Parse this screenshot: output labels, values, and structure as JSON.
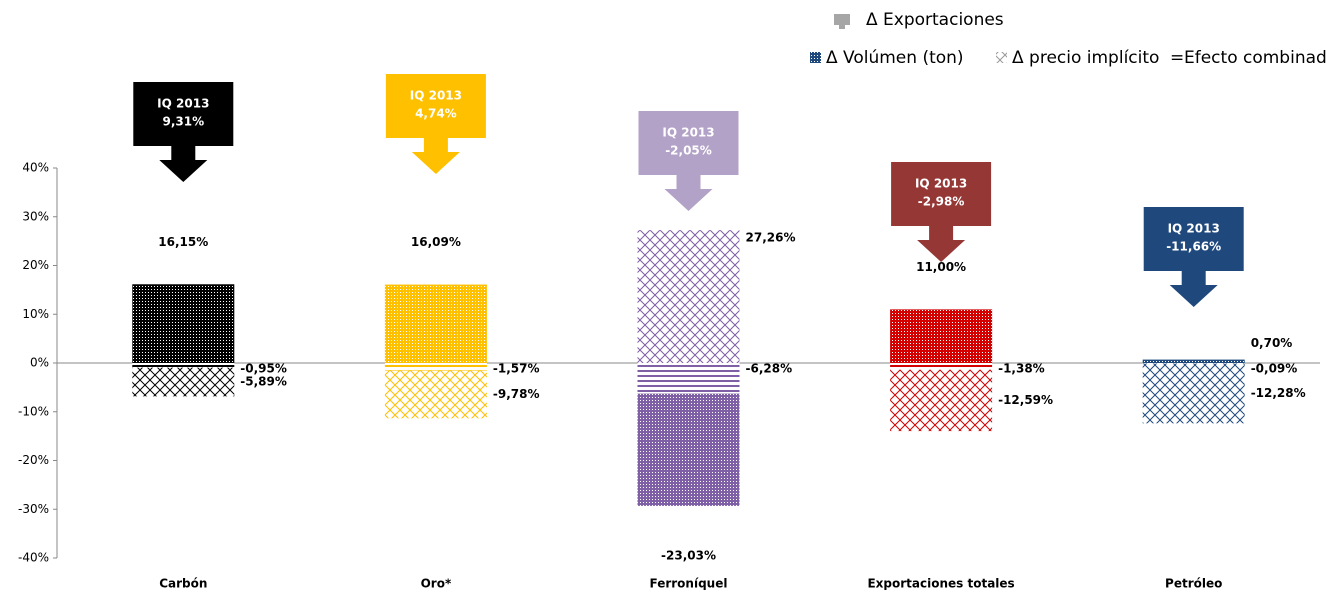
{
  "chart_data": {
    "type": "bar",
    "categories": [
      "Carbón",
      "Oro*",
      "Ferroníquel",
      "Exportaciones totales",
      "Petróleo"
    ],
    "colors": [
      "#000000",
      "#ffc000",
      "#7f5fa6",
      "#d40000",
      "#1f497d"
    ],
    "callout_colors": [
      "#000000",
      "#ffc000",
      "#b3a2c7",
      "#953735",
      "#1f497d"
    ],
    "exports": {
      "name": "Δ Exportaciones",
      "period": "IQ 2013",
      "values": [
        9.31,
        4.74,
        -2.05,
        -2.98,
        -11.66
      ],
      "value_labels": [
        "9,31%",
        "4,74%",
        "-2,05%",
        "-2,98%",
        "-11,66%"
      ]
    },
    "series": [
      {
        "name": "Δ Volúmen (ton)",
        "values": [
          16.15,
          16.09,
          -23.03,
          11.0,
          0.7
        ],
        "value_labels": [
          "16,15%",
          "16,09%",
          "-23,03%",
          "11,00%",
          "0,70%"
        ]
      },
      {
        "name": "Δ precio implícito",
        "values": [
          -5.89,
          -9.78,
          27.26,
          -12.59,
          -12.28
        ],
        "value_labels": [
          "-5,89%",
          "-9,78%",
          "27,26%",
          "-12,59%",
          "-12,28%"
        ]
      },
      {
        "name": "Efecto combinado",
        "values": [
          -0.95,
          -1.57,
          -6.28,
          -1.38,
          -0.09
        ],
        "value_labels": [
          "-0,95%",
          "-1,57%",
          "-6,28%",
          "-1,38%",
          "-0,09%"
        ]
      }
    ],
    "ylim": [
      -40,
      40
    ],
    "yticks": [
      {
        "value": -40,
        "label": "-40%"
      },
      {
        "value": -30,
        "label": "-30%"
      },
      {
        "value": -20,
        "label": "-20%"
      },
      {
        "value": -10,
        "label": "-10%"
      },
      {
        "value": 0,
        "label": "0%"
      },
      {
        "value": 10,
        "label": "10%"
      },
      {
        "value": 20,
        "label": "20%"
      },
      {
        "value": 30,
        "label": "30%"
      },
      {
        "value": 40,
        "label": "40%"
      }
    ]
  }
}
